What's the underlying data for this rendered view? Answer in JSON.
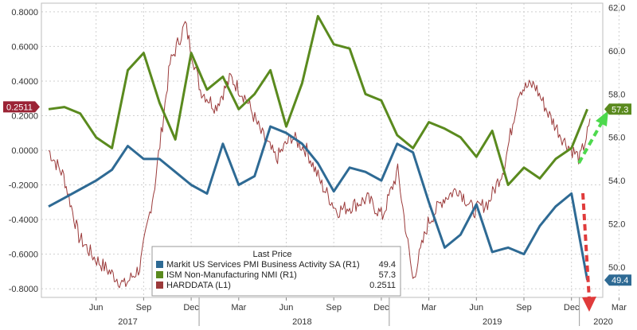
{
  "chart_data": {
    "type": "line",
    "x_months": [
      "2017-03",
      "2017-04",
      "2017-05",
      "2017-06",
      "2017-07",
      "2017-08",
      "2017-09",
      "2017-10",
      "2017-11",
      "2017-12",
      "2018-01",
      "2018-02",
      "2018-03",
      "2018-04",
      "2018-05",
      "2018-06",
      "2018-07",
      "2018-08",
      "2018-09",
      "2018-10",
      "2018-11",
      "2018-12",
      "2019-01",
      "2019-02",
      "2019-03",
      "2019-04",
      "2019-05",
      "2019-06",
      "2019-07",
      "2019-08",
      "2019-09",
      "2019-10",
      "2019-11",
      "2019-12",
      "2020-01",
      "2020-02"
    ],
    "x_ticks": [
      {
        "label": "Jun",
        "month": "2017-06"
      },
      {
        "label": "Sep",
        "month": "2017-09"
      },
      {
        "label": "Dec",
        "month": "2017-12"
      },
      {
        "label": "Mar",
        "month": "2018-03"
      },
      {
        "label": "Jun",
        "month": "2018-06"
      },
      {
        "label": "Sep",
        "month": "2018-09"
      },
      {
        "label": "Dec",
        "month": "2018-12"
      },
      {
        "label": "Mar",
        "month": "2019-03"
      },
      {
        "label": "Jun",
        "month": "2019-06"
      },
      {
        "label": "Sep",
        "month": "2019-09"
      },
      {
        "label": "Dec",
        "month": "2019-12"
      },
      {
        "label": "Mar",
        "month": "2020-03"
      }
    ],
    "year_labels": [
      {
        "label": "2017",
        "month": "2017-08"
      },
      {
        "label": "2018",
        "month": "2018-07"
      },
      {
        "label": "2019",
        "month": "2019-07"
      },
      {
        "label": "2020",
        "month": "2020-02"
      }
    ],
    "left_axis": {
      "ticks": [
        "0.8000",
        "0.6000",
        "0.4000",
        "0.2000",
        "0.0000",
        "-0.2000",
        "-0.4000",
        "-0.6000",
        "-0.8000"
      ],
      "ylim": [
        -0.85,
        0.85
      ]
    },
    "right_axis": {
      "ticks": [
        "62.0",
        "60.0",
        "58.0",
        "56.0",
        "54.0",
        "52.0",
        "50.0"
      ],
      "ylim": [
        48.6,
        62.2
      ]
    },
    "legend_title": "Last Price",
    "series": [
      {
        "name": "Markit US Services PMI Business Activity SA  (R1)",
        "last": "49.4",
        "color": "#2e6a94",
        "axis": "right",
        "values": [
          52.8,
          53.2,
          53.6,
          54.0,
          54.5,
          55.6,
          55.0,
          55.0,
          54.4,
          53.8,
          53.4,
          55.7,
          53.8,
          54.2,
          56.5,
          56.2,
          55.7,
          54.8,
          53.5,
          54.6,
          54.4,
          54.0,
          55.7,
          55.3,
          53.0,
          50.9,
          51.5,
          52.9,
          50.7,
          50.9,
          50.6,
          51.9,
          52.8,
          53.4,
          49.4
        ]
      },
      {
        "name": "ISM Non-Manufacturing NMI  (R1)",
        "last": "57.3",
        "color": "#5a8a1e",
        "axis": "right",
        "values": [
          57.3,
          57.4,
          57.1,
          56.0,
          55.5,
          59.1,
          59.9,
          57.6,
          55.9,
          59.9,
          58.2,
          58.8,
          57.3,
          58.0,
          59.1,
          56.5,
          58.5,
          61.6,
          60.3,
          60.1,
          58.0,
          57.7,
          56.1,
          55.5,
          56.7,
          56.4,
          56.0,
          55.1,
          56.3,
          53.8,
          54.6,
          54.1,
          55.0,
          55.5,
          57.3
        ]
      },
      {
        "name": "HARDDATA  (L1)",
        "last": "0.2511",
        "color": "#9b3a3a",
        "axis": "left"
      }
    ],
    "arrows": [
      {
        "color": "#4dd94d",
        "direction": "up"
      },
      {
        "color": "#e03b3b",
        "direction": "down"
      }
    ]
  }
}
